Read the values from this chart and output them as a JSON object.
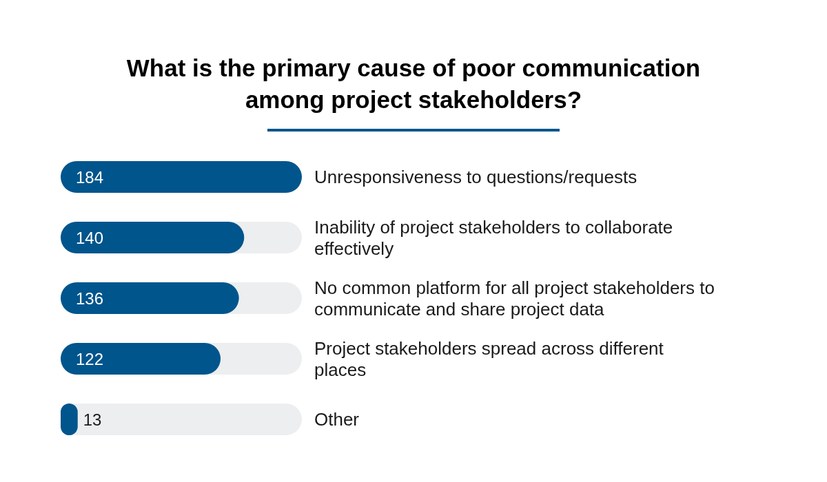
{
  "chart_data": {
    "type": "bar",
    "orientation": "horizontal",
    "tick_labels": false,
    "data_labels": true,
    "title": "What is the primary cause of poor communication among project stakeholders?",
    "categories": [
      "Unresponsiveness to questions/requests",
      "Inability of project stakeholders to collaborate effectively",
      "No common platform for all project stakeholders to communicate and share project data",
      "Project stakeholders spread across different places",
      "Other"
    ],
    "values": [
      184,
      140,
      136,
      122,
      13
    ],
    "color": "#00558c"
  }
}
